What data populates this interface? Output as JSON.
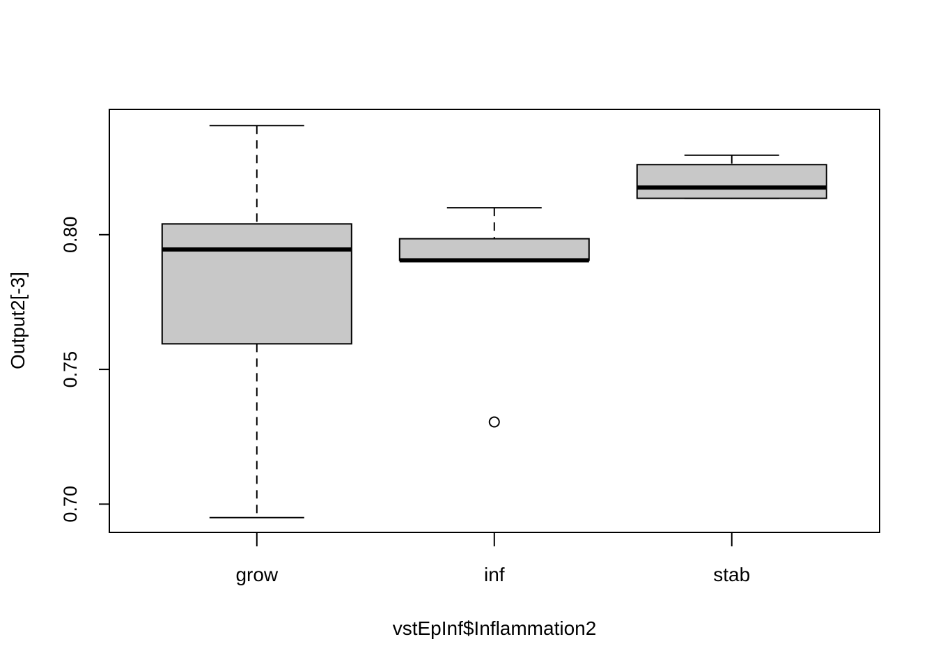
{
  "chart_data": {
    "type": "boxplot",
    "xlabel": "vstEpInf$Inflammation2",
    "ylabel": "Output2[-3]",
    "ylim": [
      0.6895,
      0.8465
    ],
    "yticks": [
      0.7,
      0.75,
      0.8
    ],
    "ytick_labels": [
      "0.70",
      "0.75",
      "0.80"
    ],
    "categories": [
      "grow",
      "inf",
      "stab"
    ],
    "boxes": [
      {
        "category": "grow",
        "whisker_low": 0.695,
        "q1": 0.7595,
        "median": 0.7945,
        "q3": 0.804,
        "whisker_high": 0.8405,
        "outliers": []
      },
      {
        "category": "inf",
        "whisker_low": 0.7905,
        "q1": 0.7905,
        "median": 0.7905,
        "q3": 0.7985,
        "whisker_high": 0.81,
        "outliers": [
          0.7305
        ]
      },
      {
        "category": "stab",
        "whisker_low": 0.8135,
        "q1": 0.8135,
        "median": 0.8175,
        "q3": 0.826,
        "whisker_high": 0.8295,
        "outliers": []
      }
    ],
    "box_fill": "#c8c8c8",
    "grid": false,
    "legend": "none"
  }
}
